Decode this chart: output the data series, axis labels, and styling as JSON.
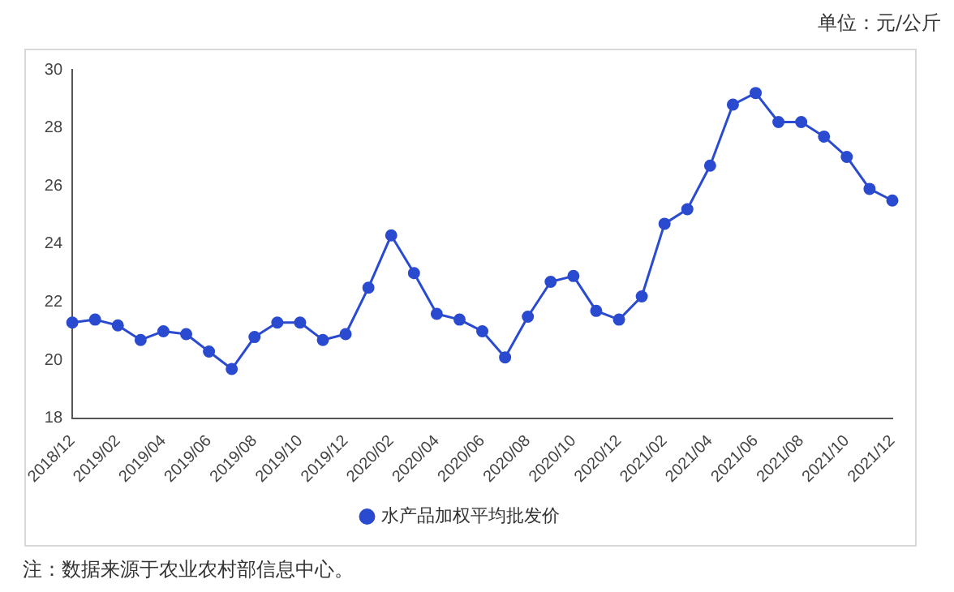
{
  "chart_data": {
    "type": "line",
    "categories": [
      "2018/12",
      null,
      "2019/02",
      null,
      "2019/04",
      null,
      "2019/06",
      null,
      "2019/08",
      null,
      "2019/10",
      null,
      "2019/12",
      null,
      "2020/02",
      null,
      "2020/04",
      null,
      "2020/06",
      null,
      "2020/08",
      null,
      "2020/10",
      null,
      "2020/12",
      null,
      "2021/02",
      null,
      "2021/04",
      null,
      "2021/06",
      null,
      "2021/08",
      null,
      "2021/10",
      null,
      "2021/12"
    ],
    "series": [
      {
        "name": "水产品加权平均批发价",
        "color": "#2a4bd0",
        "values": [
          21.3,
          21.4,
          21.2,
          20.7,
          21.0,
          20.9,
          20.3,
          19.7,
          20.8,
          21.3,
          21.3,
          20.7,
          20.9,
          22.5,
          24.3,
          23.0,
          21.6,
          21.4,
          21.0,
          20.1,
          21.5,
          22.7,
          22.9,
          21.7,
          21.4,
          22.2,
          24.7,
          25.2,
          26.7,
          28.8,
          29.2,
          28.2,
          28.2,
          27.7,
          27.0,
          25.9,
          25.5
        ]
      }
    ],
    "ylim": [
      18,
      30
    ],
    "yticks": [
      18,
      20,
      22,
      24,
      26,
      28,
      30
    ],
    "grid": false,
    "legend": "bottom",
    "marker": "circle",
    "line_style": "solid",
    "annotations": [
      "单位：元/公斤",
      "注：数据来源于农业农村部信息中心。"
    ]
  }
}
